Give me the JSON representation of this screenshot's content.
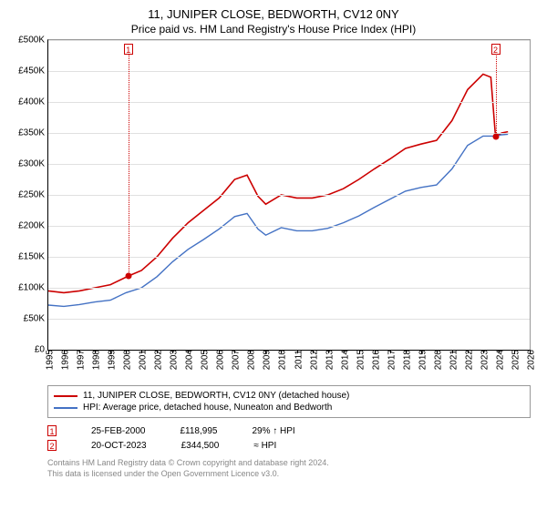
{
  "title": "11, JUNIPER CLOSE, BEDWORTH, CV12 0NY",
  "subtitle": "Price paid vs. HM Land Registry's House Price Index (HPI)",
  "chart": {
    "type": "line",
    "background_color": "#ffffff",
    "grid_color": "#e0e0e0",
    "axis_color": "#000000",
    "ylabel_prefix": "£",
    "ylim": [
      0,
      500000
    ],
    "ytick_step": 50000,
    "yticks": [
      "£0",
      "£50K",
      "£100K",
      "£150K",
      "£200K",
      "£250K",
      "£300K",
      "£350K",
      "£400K",
      "£450K",
      "£500K"
    ],
    "xlim": [
      1995,
      2026
    ],
    "xticks": [
      1995,
      1996,
      1997,
      1998,
      1999,
      2000,
      2001,
      2002,
      2003,
      2004,
      2005,
      2006,
      2007,
      2008,
      2009,
      2010,
      2011,
      2012,
      2013,
      2014,
      2015,
      2016,
      2017,
      2018,
      2019,
      2020,
      2021,
      2022,
      2023,
      2024,
      2025,
      2026
    ],
    "label_fontsize": 10,
    "series": [
      {
        "name": "subject",
        "label": "11, JUNIPER CLOSE, BEDWORTH, CV12 0NY (detached house)",
        "color": "#cc0000",
        "line_width": 1.6,
        "points": [
          [
            1995,
            95000
          ],
          [
            1996,
            92000
          ],
          [
            1997,
            95000
          ],
          [
            1998,
            100000
          ],
          [
            1999,
            105000
          ],
          [
            2000.15,
            118995
          ],
          [
            2001,
            128000
          ],
          [
            2002,
            150000
          ],
          [
            2003,
            180000
          ],
          [
            2004,
            205000
          ],
          [
            2005,
            225000
          ],
          [
            2006,
            245000
          ],
          [
            2007,
            275000
          ],
          [
            2007.8,
            282000
          ],
          [
            2008.5,
            248000
          ],
          [
            2009,
            235000
          ],
          [
            2010,
            250000
          ],
          [
            2011,
            245000
          ],
          [
            2012,
            245000
          ],
          [
            2013,
            250000
          ],
          [
            2014,
            260000
          ],
          [
            2015,
            275000
          ],
          [
            2016,
            292000
          ],
          [
            2017,
            308000
          ],
          [
            2018,
            325000
          ],
          [
            2019,
            332000
          ],
          [
            2020,
            338000
          ],
          [
            2021,
            370000
          ],
          [
            2022,
            420000
          ],
          [
            2023,
            445000
          ],
          [
            2023.5,
            440000
          ],
          [
            2023.8,
            344500
          ],
          [
            2024.2,
            350000
          ],
          [
            2024.6,
            352000
          ]
        ]
      },
      {
        "name": "hpi",
        "label": "HPI: Average price, detached house, Nuneaton and Bedworth",
        "color": "#4472c4",
        "line_width": 1.4,
        "points": [
          [
            1995,
            72000
          ],
          [
            1996,
            70000
          ],
          [
            1997,
            73000
          ],
          [
            1998,
            77000
          ],
          [
            1999,
            80000
          ],
          [
            2000,
            92000
          ],
          [
            2001,
            100000
          ],
          [
            2002,
            118000
          ],
          [
            2003,
            142000
          ],
          [
            2004,
            162000
          ],
          [
            2005,
            178000
          ],
          [
            2006,
            195000
          ],
          [
            2007,
            215000
          ],
          [
            2007.8,
            220000
          ],
          [
            2008.5,
            195000
          ],
          [
            2009,
            185000
          ],
          [
            2010,
            197000
          ],
          [
            2011,
            192000
          ],
          [
            2012,
            192000
          ],
          [
            2013,
            196000
          ],
          [
            2014,
            205000
          ],
          [
            2015,
            216000
          ],
          [
            2016,
            230000
          ],
          [
            2017,
            243000
          ],
          [
            2018,
            256000
          ],
          [
            2019,
            262000
          ],
          [
            2020,
            266000
          ],
          [
            2021,
            292000
          ],
          [
            2022,
            330000
          ],
          [
            2023,
            345000
          ],
          [
            2023.8,
            345000
          ],
          [
            2024.2,
            347000
          ],
          [
            2024.6,
            348000
          ]
        ]
      }
    ],
    "sale_markers": [
      {
        "n": "1",
        "x": 2000.15,
        "y": 118995,
        "dot_color": "#cc0000"
      },
      {
        "n": "2",
        "x": 2023.8,
        "y": 344500,
        "dot_color": "#cc0000"
      }
    ]
  },
  "legend": {
    "border_color": "#999999",
    "items": [
      {
        "color": "#cc0000",
        "label": "11, JUNIPER CLOSE, BEDWORTH, CV12 0NY (detached house)"
      },
      {
        "color": "#4472c4",
        "label": "HPI: Average price, detached house, Nuneaton and Bedworth"
      }
    ]
  },
  "sales": [
    {
      "n": "1",
      "date": "25-FEB-2000",
      "price": "£118,995",
      "delta": "29% ↑ HPI"
    },
    {
      "n": "2",
      "date": "20-OCT-2023",
      "price": "£344,500",
      "delta": "≈ HPI"
    }
  ],
  "footer": {
    "line1": "Contains HM Land Registry data © Crown copyright and database right 2024.",
    "line2": "This data is licensed under the Open Government Licence v3.0."
  }
}
